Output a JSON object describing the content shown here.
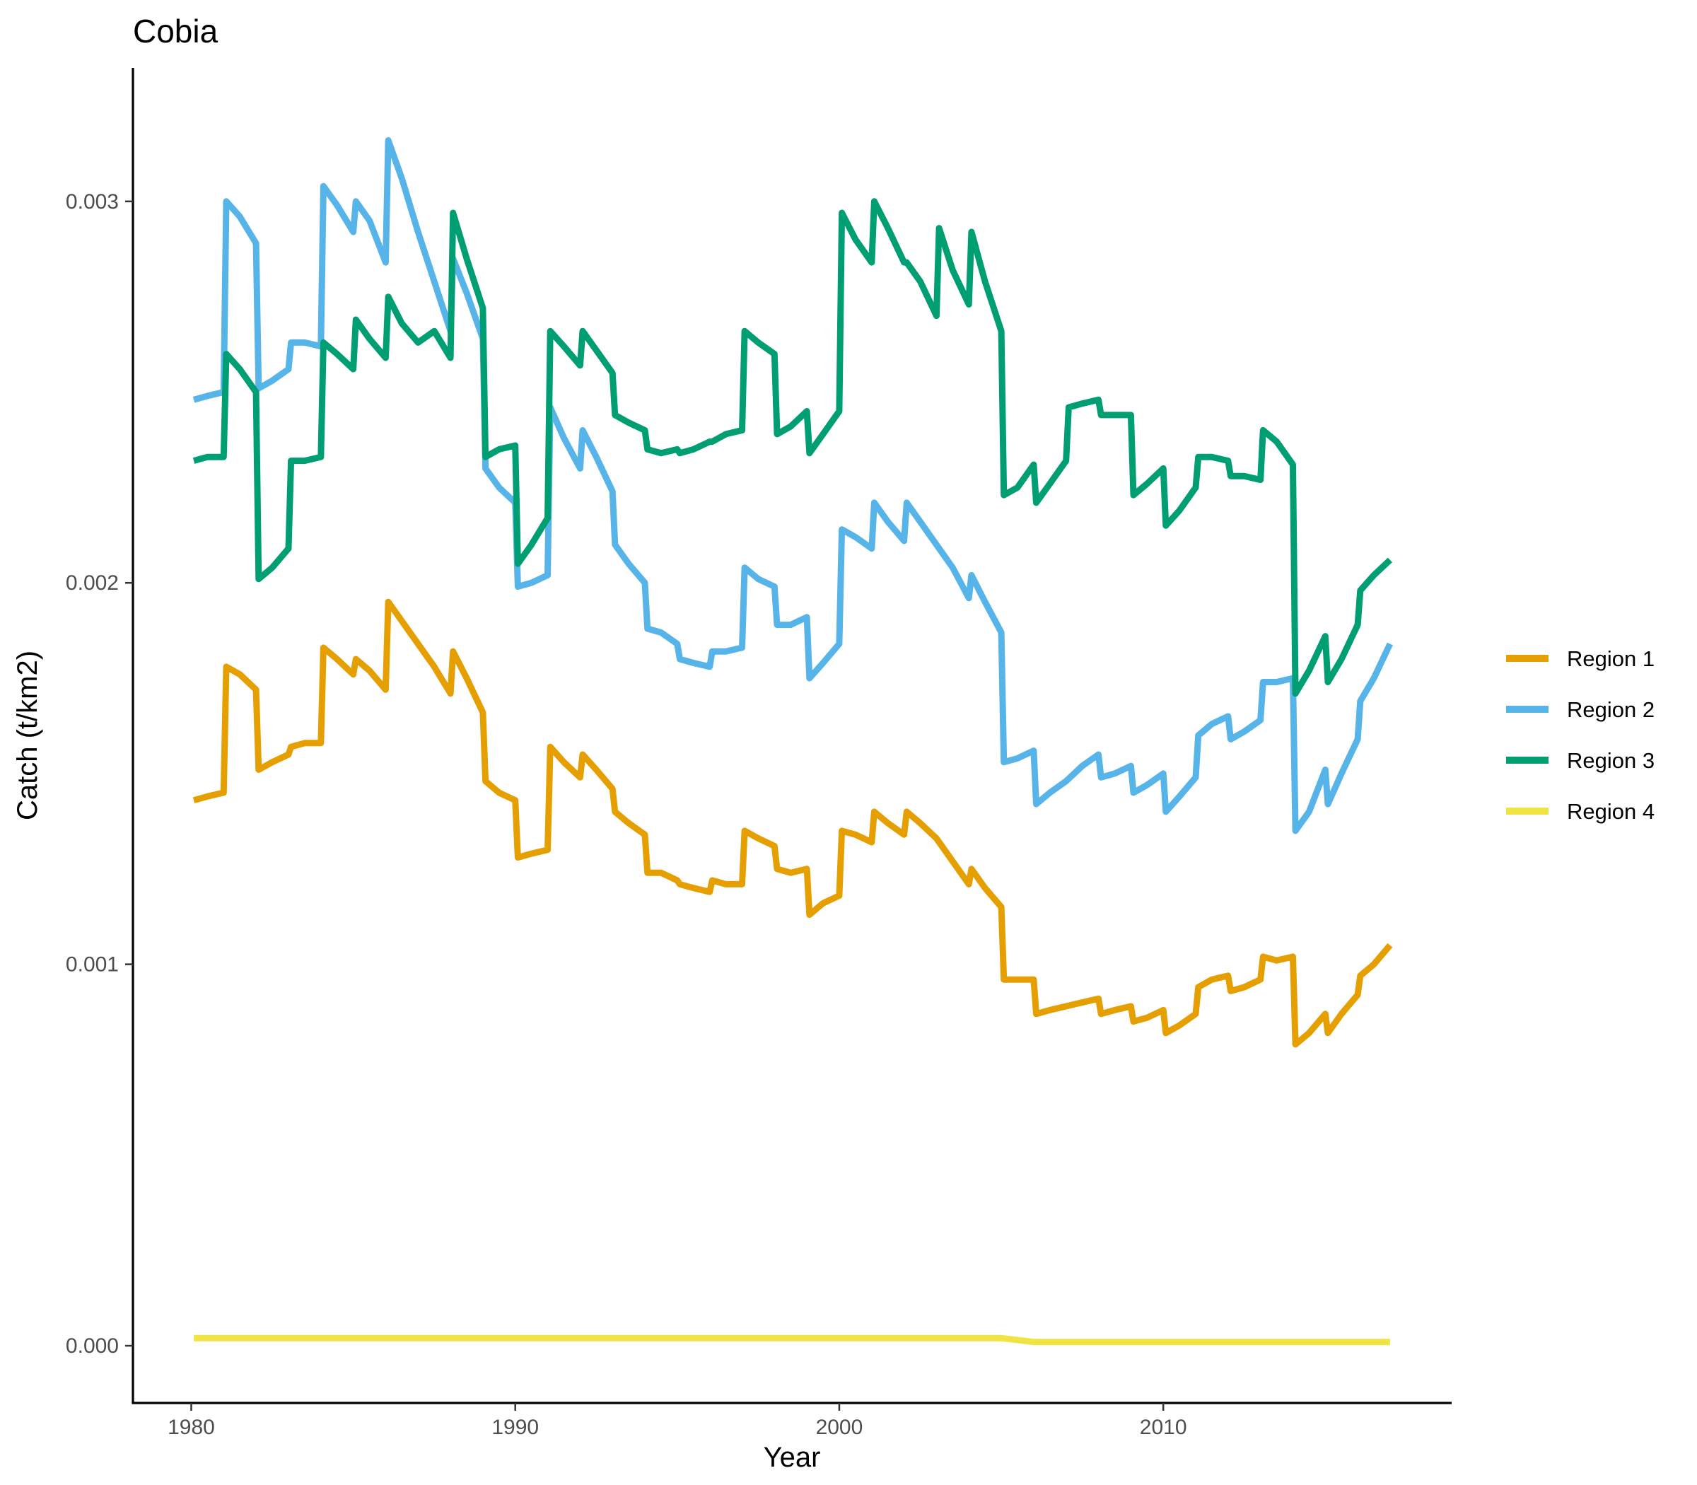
{
  "chart_data": {
    "type": "line",
    "title": "Cobia",
    "xlabel": "Year",
    "ylabel": "Catch (t/km2)",
    "xlim": [
      1978.2,
      2018.9
    ],
    "ylim": [
      -0.00015,
      0.00335
    ],
    "x_ticks": [
      1980,
      1990,
      2000,
      2010
    ],
    "x_tick_labels": [
      "1980",
      "1990",
      "2000",
      "2010"
    ],
    "y_ticks": [
      0.0,
      0.001,
      0.002,
      0.003
    ],
    "y_tick_labels": [
      "0.000",
      "0.001",
      "0.002",
      "0.003"
    ],
    "grid": false,
    "legend_position": "right",
    "series": [
      {
        "name": "Region 1",
        "color": "#E69F00",
        "x": [
          1980.08,
          1980.5,
          1981.0,
          1981.08,
          1981.5,
          1982.0,
          1982.08,
          1982.5,
          1983.0,
          1983.08,
          1983.5,
          1984.0,
          1984.08,
          1984.5,
          1985.0,
          1985.08,
          1985.5,
          1986.0,
          1986.08,
          1986.5,
          1987.0,
          1987.5,
          1988.0,
          1988.08,
          1988.5,
          1989.0,
          1989.08,
          1989.5,
          1990.0,
          1990.08,
          1990.5,
          1991.0,
          1991.08,
          1991.5,
          1992.0,
          1992.08,
          1992.5,
          1993.0,
          1993.08,
          1993.5,
          1994.0,
          1994.08,
          1994.5,
          1995.0,
          1995.08,
          1995.5,
          1996.0,
          1996.08,
          1996.5,
          1997.0,
          1997.08,
          1997.5,
          1998.0,
          1998.08,
          1998.5,
          1999.0,
          1999.08,
          1999.5,
          2000.0,
          2000.08,
          2000.5,
          2001.0,
          2001.08,
          2001.5,
          2002.0,
          2002.08,
          2002.5,
          2003.0,
          2003.5,
          2004.0,
          2004.08,
          2004.5,
          2005.0,
          2005.08,
          2005.5,
          2006.0,
          2006.08,
          2006.5,
          2007.0,
          2007.5,
          2008.0,
          2008.08,
          2008.5,
          2009.0,
          2009.08,
          2009.5,
          2010.0,
          2010.08,
          2010.5,
          2011.0,
          2011.08,
          2011.5,
          2012.0,
          2012.08,
          2012.5,
          2013.0,
          2013.08,
          2013.5,
          2014.0,
          2014.08,
          2014.5,
          2015.0,
          2015.08,
          2015.5,
          2016.0,
          2016.08,
          2016.5,
          2017.0
        ],
        "values": [
          0.00143,
          0.00144,
          0.00145,
          0.00178,
          0.00176,
          0.00172,
          0.00151,
          0.00153,
          0.00155,
          0.00157,
          0.00158,
          0.00158,
          0.00183,
          0.0018,
          0.00176,
          0.0018,
          0.00177,
          0.00172,
          0.00195,
          0.0019,
          0.00184,
          0.00178,
          0.00171,
          0.00182,
          0.00175,
          0.00166,
          0.00148,
          0.00145,
          0.00143,
          0.00128,
          0.00129,
          0.0013,
          0.00157,
          0.00153,
          0.00149,
          0.00155,
          0.00151,
          0.00146,
          0.0014,
          0.00137,
          0.00134,
          0.00124,
          0.00124,
          0.00122,
          0.00121,
          0.0012,
          0.00119,
          0.00122,
          0.00121,
          0.00121,
          0.00135,
          0.00133,
          0.00131,
          0.00125,
          0.00124,
          0.00125,
          0.00113,
          0.00116,
          0.00118,
          0.00135,
          0.00134,
          0.00132,
          0.0014,
          0.00137,
          0.00134,
          0.0014,
          0.00137,
          0.00133,
          0.00127,
          0.00121,
          0.00125,
          0.0012,
          0.00115,
          0.00096,
          0.00096,
          0.00096,
          0.00087,
          0.00088,
          0.00089,
          0.0009,
          0.00091,
          0.00087,
          0.00088,
          0.00089,
          0.00085,
          0.00086,
          0.00088,
          0.00082,
          0.00084,
          0.00087,
          0.00094,
          0.00096,
          0.00097,
          0.00093,
          0.00094,
          0.00096,
          0.00102,
          0.00101,
          0.00102,
          0.00079,
          0.00082,
          0.00087,
          0.00082,
          0.00087,
          0.00092,
          0.00097,
          0.001,
          0.00105
        ]
      },
      {
        "name": "Region 2",
        "color": "#56B4E9",
        "x": [
          1980.08,
          1980.5,
          1981.0,
          1981.08,
          1981.5,
          1982.0,
          1982.08,
          1982.5,
          1983.0,
          1983.08,
          1983.5,
          1984.0,
          1984.08,
          1984.5,
          1985.0,
          1985.08,
          1985.5,
          1986.0,
          1986.08,
          1986.5,
          1987.0,
          1987.5,
          1988.0,
          1988.08,
          1988.5,
          1989.0,
          1989.08,
          1989.5,
          1990.0,
          1990.08,
          1990.5,
          1991.0,
          1991.08,
          1991.5,
          1992.0,
          1992.08,
          1992.5,
          1993.0,
          1993.08,
          1993.5,
          1994.0,
          1994.08,
          1994.5,
          1995.0,
          1995.08,
          1995.5,
          1996.0,
          1996.08,
          1996.5,
          1997.0,
          1997.08,
          1997.5,
          1998.0,
          1998.08,
          1998.5,
          1999.0,
          1999.08,
          1999.5,
          2000.0,
          2000.08,
          2000.5,
          2001.0,
          2001.08,
          2001.5,
          2002.0,
          2002.08,
          2002.5,
          2003.0,
          2003.5,
          2004.0,
          2004.08,
          2004.5,
          2005.0,
          2005.08,
          2005.5,
          2006.0,
          2006.08,
          2006.5,
          2007.0,
          2007.5,
          2008.0,
          2008.08,
          2008.5,
          2009.0,
          2009.08,
          2009.5,
          2010.0,
          2010.08,
          2010.5,
          2011.0,
          2011.08,
          2011.5,
          2012.0,
          2012.08,
          2012.5,
          2013.0,
          2013.08,
          2013.5,
          2014.0,
          2014.08,
          2014.5,
          2015.0,
          2015.08,
          2015.5,
          2016.0,
          2016.08,
          2016.5,
          2017.0
        ],
        "values": [
          0.00248,
          0.00249,
          0.0025,
          0.003,
          0.00296,
          0.00289,
          0.00251,
          0.00253,
          0.00256,
          0.00263,
          0.00263,
          0.00262,
          0.00304,
          0.00299,
          0.00292,
          0.003,
          0.00295,
          0.00284,
          0.00316,
          0.00306,
          0.00292,
          0.00279,
          0.00266,
          0.00285,
          0.00276,
          0.00264,
          0.0023,
          0.00225,
          0.00221,
          0.00199,
          0.002,
          0.00202,
          0.00246,
          0.00238,
          0.0023,
          0.0024,
          0.00233,
          0.00224,
          0.0021,
          0.00205,
          0.002,
          0.00188,
          0.00187,
          0.00184,
          0.0018,
          0.00179,
          0.00178,
          0.00182,
          0.00182,
          0.00183,
          0.00204,
          0.00201,
          0.00199,
          0.00189,
          0.00189,
          0.00191,
          0.00175,
          0.00179,
          0.00184,
          0.00214,
          0.00212,
          0.00209,
          0.00221,
          0.00216,
          0.00211,
          0.00221,
          0.00216,
          0.0021,
          0.00204,
          0.00196,
          0.00202,
          0.00195,
          0.00187,
          0.00153,
          0.00154,
          0.00156,
          0.00142,
          0.00145,
          0.00148,
          0.00152,
          0.00155,
          0.00149,
          0.0015,
          0.00152,
          0.00145,
          0.00147,
          0.0015,
          0.0014,
          0.00144,
          0.00149,
          0.0016,
          0.00163,
          0.00165,
          0.00159,
          0.00161,
          0.00164,
          0.00174,
          0.00174,
          0.00175,
          0.00135,
          0.0014,
          0.00151,
          0.00142,
          0.0015,
          0.00159,
          0.00169,
          0.00175,
          0.00184
        ]
      },
      {
        "name": "Region 3",
        "color": "#009E73",
        "x": [
          1980.08,
          1980.5,
          1981.0,
          1981.08,
          1981.5,
          1982.0,
          1982.08,
          1982.5,
          1983.0,
          1983.08,
          1983.5,
          1984.0,
          1984.08,
          1984.5,
          1985.0,
          1985.08,
          1985.5,
          1986.0,
          1986.08,
          1986.5,
          1987.0,
          1987.5,
          1988.0,
          1988.08,
          1988.5,
          1989.0,
          1989.08,
          1989.5,
          1990.0,
          1990.08,
          1990.5,
          1991.0,
          1991.08,
          1991.5,
          1992.0,
          1992.08,
          1992.5,
          1993.0,
          1993.08,
          1993.5,
          1994.0,
          1994.08,
          1994.5,
          1995.0,
          1995.08,
          1995.5,
          1996.0,
          1996.08,
          1996.5,
          1997.0,
          1997.08,
          1997.5,
          1998.0,
          1998.08,
          1998.5,
          1999.0,
          1999.08,
          1999.5,
          2000.0,
          2000.08,
          2000.5,
          2001.0,
          2001.08,
          2001.5,
          2002.0,
          2002.08,
          2002.5,
          2003.0,
          2003.08,
          2003.5,
          2004.0,
          2004.08,
          2004.5,
          2005.0,
          2005.08,
          2005.5,
          2006.0,
          2006.08,
          2006.5,
          2007.0,
          2007.08,
          2007.5,
          2008.0,
          2008.08,
          2008.5,
          2009.0,
          2009.08,
          2009.5,
          2010.0,
          2010.08,
          2010.5,
          2011.0,
          2011.08,
          2011.5,
          2012.0,
          2012.08,
          2012.5,
          2013.0,
          2013.08,
          2013.5,
          2014.0,
          2014.08,
          2014.5,
          2015.0,
          2015.08,
          2015.5,
          2016.0,
          2016.08,
          2016.5,
          2017.0
        ],
        "values": [
          0.00232,
          0.00233,
          0.00233,
          0.0026,
          0.00256,
          0.0025,
          0.00201,
          0.00204,
          0.00209,
          0.00232,
          0.00232,
          0.00233,
          0.00263,
          0.0026,
          0.00256,
          0.00269,
          0.00264,
          0.00259,
          0.00275,
          0.00268,
          0.00263,
          0.00266,
          0.00259,
          0.00297,
          0.00285,
          0.00272,
          0.00233,
          0.00235,
          0.00236,
          0.00205,
          0.0021,
          0.00217,
          0.00266,
          0.00262,
          0.00257,
          0.00266,
          0.00261,
          0.00255,
          0.00244,
          0.00242,
          0.0024,
          0.00235,
          0.00234,
          0.00235,
          0.00234,
          0.00235,
          0.00237,
          0.00237,
          0.00239,
          0.0024,
          0.00266,
          0.00263,
          0.0026,
          0.00239,
          0.00241,
          0.00245,
          0.00234,
          0.00239,
          0.00245,
          0.00297,
          0.0029,
          0.00284,
          0.003,
          0.00293,
          0.00284,
          0.00284,
          0.00279,
          0.0027,
          0.00293,
          0.00282,
          0.00273,
          0.00292,
          0.00279,
          0.00266,
          0.00223,
          0.00225,
          0.00231,
          0.00221,
          0.00226,
          0.00232,
          0.00246,
          0.00247,
          0.00248,
          0.00244,
          0.00244,
          0.00244,
          0.00223,
          0.00226,
          0.0023,
          0.00215,
          0.00219,
          0.00225,
          0.00233,
          0.00233,
          0.00232,
          0.00228,
          0.00228,
          0.00227,
          0.0024,
          0.00237,
          0.00231,
          0.00171,
          0.00177,
          0.00186,
          0.00174,
          0.0018,
          0.00189,
          0.00198,
          0.00202,
          0.00206
        ]
      },
      {
        "name": "Region 4",
        "color": "#F0E442",
        "x": [
          1980.08,
          1981.0,
          1981.5,
          1982.0,
          1982.5,
          1983.0,
          1983.5,
          1984.0,
          1985.0,
          1986.0,
          1987.0,
          1988.0,
          1989.0,
          1990.0,
          1991.0,
          1992.0,
          1993.0,
          1994.0,
          1995.0,
          1996.0,
          1997.0,
          1998.0,
          1999.0,
          2000.0,
          2001.0,
          2002.0,
          2003.0,
          2004.0,
          2005.0,
          2006.0,
          2007.0,
          2008.0,
          2009.0,
          2010.0,
          2011.0,
          2012.0,
          2013.0,
          2014.0,
          2015.0,
          2016.0,
          2017.0
        ],
        "values": [
          2e-05,
          2e-05,
          2e-05,
          2e-05,
          2e-05,
          2e-05,
          2e-05,
          2e-05,
          2e-05,
          2e-05,
          2e-05,
          2e-05,
          2e-05,
          2e-05,
          2e-05,
          2e-05,
          2e-05,
          2e-05,
          2e-05,
          2e-05,
          2e-05,
          2e-05,
          2e-05,
          2e-05,
          2e-05,
          2e-05,
          2e-05,
          2e-05,
          2e-05,
          1e-05,
          1e-05,
          1e-05,
          1e-05,
          1e-05,
          1e-05,
          1e-05,
          1e-05,
          1e-05,
          1e-05,
          1e-05,
          1e-05
        ]
      }
    ]
  }
}
